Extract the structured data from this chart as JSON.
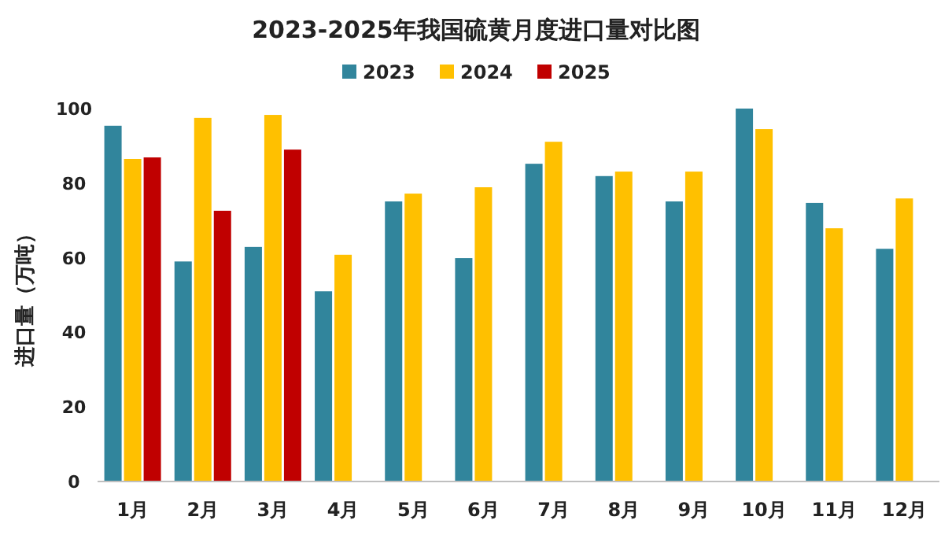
{
  "chart_data": {
    "type": "bar",
    "title": "2023-2025年我国硫黄月度进口量对比图",
    "ylabel": "进口量（万吨）",
    "categories": [
      "1月",
      "2月",
      "3月",
      "4月",
      "5月",
      "6月",
      "7月",
      "8月",
      "9月",
      "10月",
      "11月",
      "12月"
    ],
    "series": [
      {
        "name": "2023",
        "color": "#31859c",
        "values": [
          95.4,
          59,
          62.9,
          51,
          75.1,
          59.9,
          85.2,
          81.9,
          75.1,
          100,
          74.7,
          62.4
        ]
      },
      {
        "name": "2024",
        "color": "#ffc000",
        "values": [
          86.5,
          97.5,
          98.3,
          60.8,
          77.2,
          78.9,
          91.1,
          83.1,
          83.1,
          94.5,
          67.9,
          75.9
        ]
      },
      {
        "name": "2025",
        "color": "#c00000",
        "values": [
          86.9,
          72.6,
          89,
          null,
          null,
          null,
          null,
          null,
          null,
          null,
          null,
          null
        ]
      }
    ],
    "ylim": [
      0,
      100
    ],
    "yticks": [
      0,
      20,
      40,
      60,
      80,
      100
    ],
    "legend": "top"
  }
}
